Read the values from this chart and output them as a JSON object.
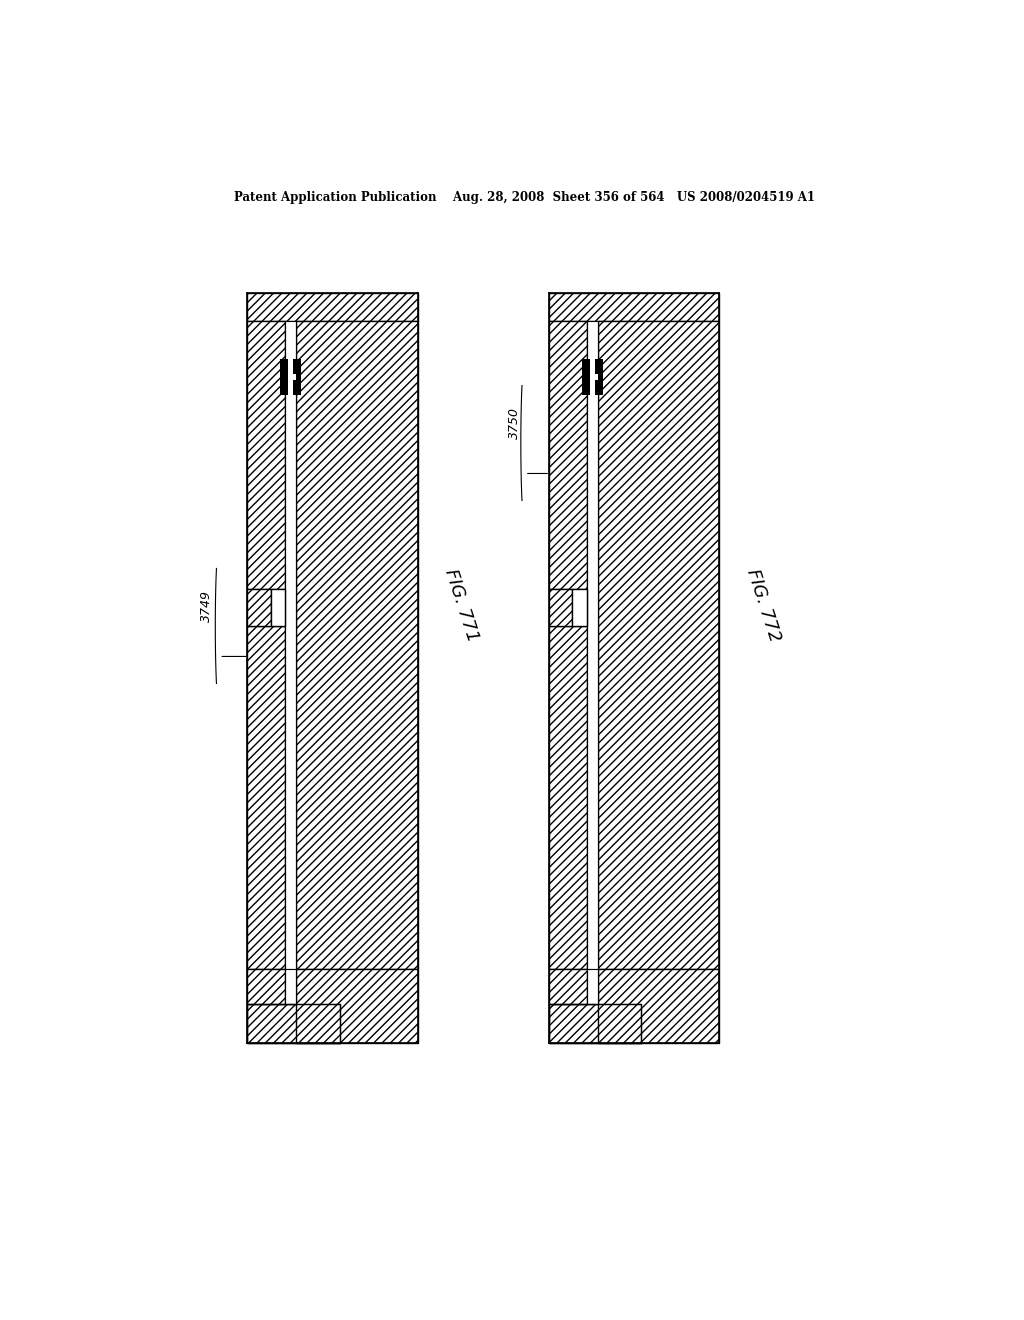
{
  "bg_color": "#ffffff",
  "line_color": "#000000",
  "header_text": "Patent Application Publication    Aug. 28, 2008  Sheet 356 of 564   US 2008/0204519 A1",
  "fig1_label": "FIG. 771",
  "fig2_label": "FIG. 772",
  "ref1_label": "3749",
  "ref2_label": "3750"
}
